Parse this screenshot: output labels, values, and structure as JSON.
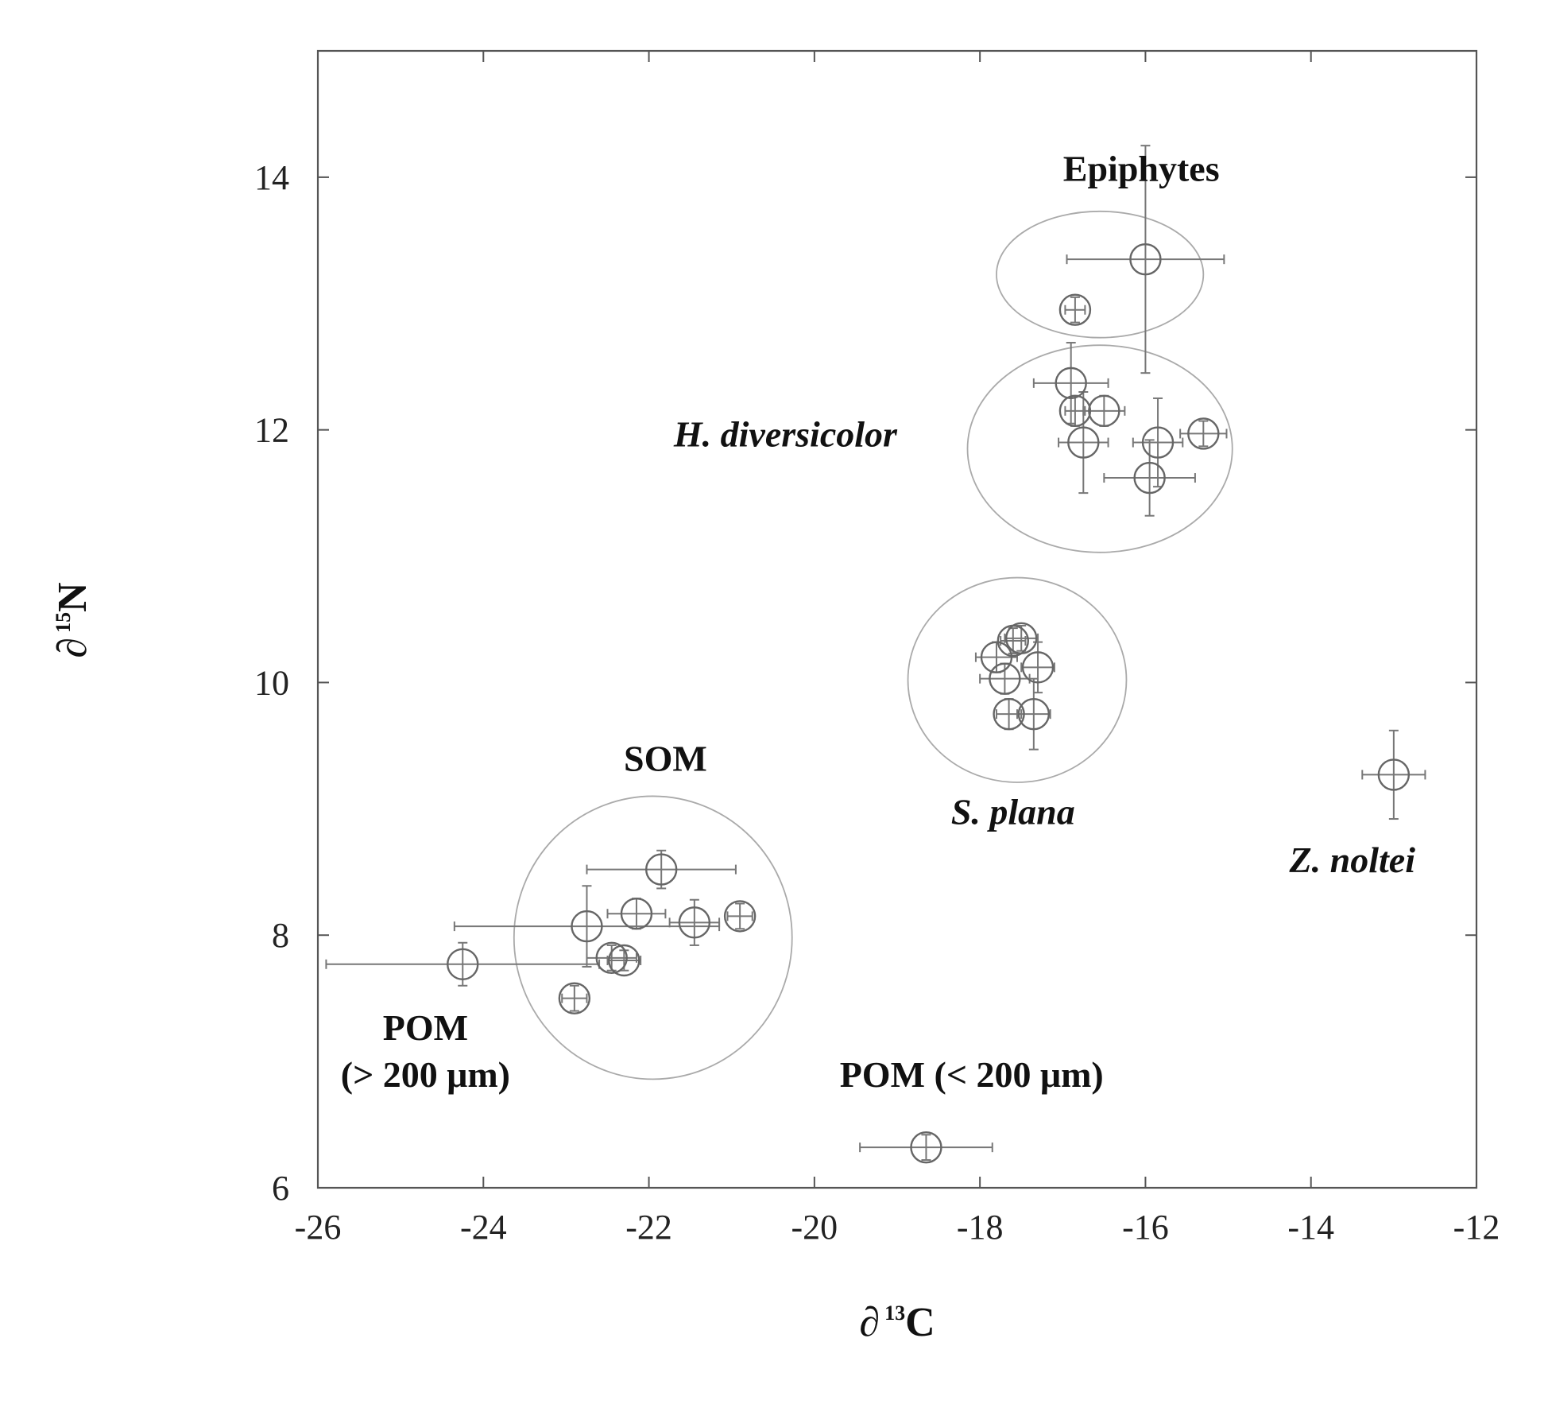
{
  "chart_data": {
    "type": "scatter",
    "xlabel": "∂",
    "xlabel_sup": "13",
    "xlabel_sym": "C",
    "ylabel": "∂",
    "ylabel_sup": "15",
    "ylabel_sym": "N",
    "xlim": [
      -26,
      -12
    ],
    "ylim": [
      6,
      15
    ],
    "x_ticks": [
      -26,
      -24,
      -22,
      -20,
      -18,
      -16,
      -14,
      -12
    ],
    "y_ticks": [
      6,
      8,
      10,
      12,
      14
    ],
    "grid": false,
    "series": [
      {
        "name": "Epiphytes",
        "points": [
          {
            "x": -16.0,
            "y": 13.35,
            "xerr": 0.95,
            "yerr": 0.9
          },
          {
            "x": -16.85,
            "y": 12.95,
            "xerr": 0.12,
            "yerr": 0.1
          }
        ]
      },
      {
        "name": "H. diversicolor",
        "points": [
          {
            "x": -16.9,
            "y": 12.37,
            "xerr": 0.45,
            "yerr": 0.32
          },
          {
            "x": -16.85,
            "y": 12.15,
            "xerr": 0.12,
            "yerr": 0.12
          },
          {
            "x": -16.5,
            "y": 12.15,
            "xerr": 0.25,
            "yerr": 0.12
          },
          {
            "x": -16.75,
            "y": 11.9,
            "xerr": 0.3,
            "yerr": 0.4
          },
          {
            "x": -15.85,
            "y": 11.9,
            "xerr": 0.3,
            "yerr": 0.35
          },
          {
            "x": -15.3,
            "y": 11.97,
            "xerr": 0.28,
            "yerr": 0.1
          },
          {
            "x": -15.95,
            "y": 11.62,
            "xerr": 0.55,
            "yerr": 0.3
          }
        ]
      },
      {
        "name": "S. plana",
        "points": [
          {
            "x": -17.5,
            "y": 10.35,
            "xerr": 0.2,
            "yerr": 0.1
          },
          {
            "x": -17.6,
            "y": 10.33,
            "xerr": 0.15,
            "yerr": 0.1
          },
          {
            "x": -17.8,
            "y": 10.2,
            "xerr": 0.25,
            "yerr": 0.12
          },
          {
            "x": -17.3,
            "y": 10.12,
            "xerr": 0.2,
            "yerr": 0.2
          },
          {
            "x": -17.7,
            "y": 10.03,
            "xerr": 0.3,
            "yerr": 0.12
          },
          {
            "x": -17.65,
            "y": 9.75,
            "xerr": 0.15,
            "yerr": 0.12
          },
          {
            "x": -17.35,
            "y": 9.75,
            "xerr": 0.2,
            "yerr": 0.28
          }
        ]
      },
      {
        "name": "Z. noltei",
        "points": [
          {
            "x": -13.0,
            "y": 9.27,
            "xerr": 0.38,
            "yerr": 0.35
          }
        ]
      },
      {
        "name": "SOM",
        "points": [
          {
            "x": -21.85,
            "y": 8.52,
            "xerr": 0.9,
            "yerr": 0.15
          },
          {
            "x": -22.15,
            "y": 8.17,
            "xerr": 0.35,
            "yerr": 0.12
          },
          {
            "x": -21.45,
            "y": 8.1,
            "xerr": 0.3,
            "yerr": 0.18
          },
          {
            "x": -20.9,
            "y": 8.15,
            "xerr": 0.15,
            "yerr": 0.1
          },
          {
            "x": -22.45,
            "y": 7.82,
            "xerr": 0.3,
            "yerr": 0.1
          },
          {
            "x": -22.3,
            "y": 7.8,
            "xerr": 0.2,
            "yerr": 0.08
          },
          {
            "x": -22.9,
            "y": 7.5,
            "xerr": 0.15,
            "yerr": 0.1
          }
        ]
      },
      {
        "name": "POM (> 200 μm)",
        "points": [
          {
            "x": -22.75,
            "y": 8.07,
            "xerr": 1.6,
            "yerr": 0.32
          },
          {
            "x": -24.25,
            "y": 7.77,
            "xerr": 1.65,
            "yerr": 0.17
          }
        ]
      },
      {
        "name": "POM (< 200 μm)",
        "points": [
          {
            "x": -18.65,
            "y": 6.32,
            "xerr": 0.8,
            "yerr": 0.1
          }
        ]
      }
    ],
    "clusters": [
      {
        "name": "Epiphytes",
        "cx": -16.55,
        "cy": 13.23,
        "rx": 1.25,
        "ry": 0.5
      },
      {
        "name": "H. diversicolor",
        "cx": -16.55,
        "cy": 11.85,
        "rx": 1.6,
        "ry": 0.82
      },
      {
        "name": "S. plana",
        "cx": -17.55,
        "cy": 10.02,
        "rx": 1.32,
        "ry": 0.81
      },
      {
        "name": "SOM",
        "cx": -21.95,
        "cy": 7.98,
        "rx": 1.68,
        "ry": 1.12
      }
    ],
    "annotations": [
      {
        "text": "Epiphytes",
        "italic": false,
        "x": -16.05,
        "y": 13.97
      },
      {
        "text": "H. diversicolor",
        "italic": true,
        "x": -20.35,
        "y": 11.87
      },
      {
        "text": "S. plana",
        "italic": true,
        "x": -17.6,
        "y": 8.88
      },
      {
        "text": "Z. noltei",
        "italic": true,
        "x": -13.5,
        "y": 8.5
      },
      {
        "text": "SOM",
        "italic": false,
        "x": -21.8,
        "y": 9.3
      },
      {
        "text": "POM",
        "italic": false,
        "x": -24.7,
        "y": 7.17
      },
      {
        "text": "(> 200 μm)",
        "italic": false,
        "x": -24.7,
        "y": 6.8
      },
      {
        "text": "POM (< 200 μm)",
        "italic": false,
        "x": -18.1,
        "y": 6.8
      }
    ]
  }
}
